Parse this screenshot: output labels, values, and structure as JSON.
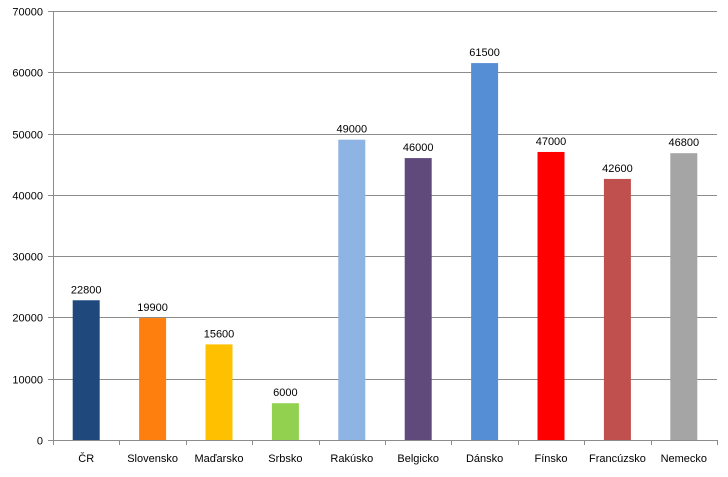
{
  "chart_data": {
    "type": "bar",
    "title": "",
    "xlabel": "",
    "ylabel": "",
    "ylim": [
      0,
      70000
    ],
    "yticks": [
      0,
      10000,
      20000,
      30000,
      40000,
      50000,
      60000,
      70000
    ],
    "grid": true,
    "legend": "none",
    "categories": [
      "ČR",
      "Slovensko",
      "Maďarsko",
      "Srbsko",
      "Rakúsko",
      "Belgicko",
      "Dánsko",
      "Fínsko",
      "Francúzsko",
      "Nemecko"
    ],
    "values": [
      22800,
      19900,
      15600,
      6000,
      49000,
      46000,
      61500,
      47000,
      42600,
      46800
    ],
    "data_labels": [
      "22800",
      "19900",
      "15600",
      "6000",
      "49000",
      "46000",
      "61500",
      "47000",
      "42600",
      "46800"
    ],
    "colors": [
      "#1F497D",
      "#FF7F0E",
      "#FFC000",
      "#92D050",
      "#8DB4E2",
      "#604A7B",
      "#558ED5",
      "#FF0000",
      "#C0504D",
      "#A5A5A5"
    ]
  }
}
